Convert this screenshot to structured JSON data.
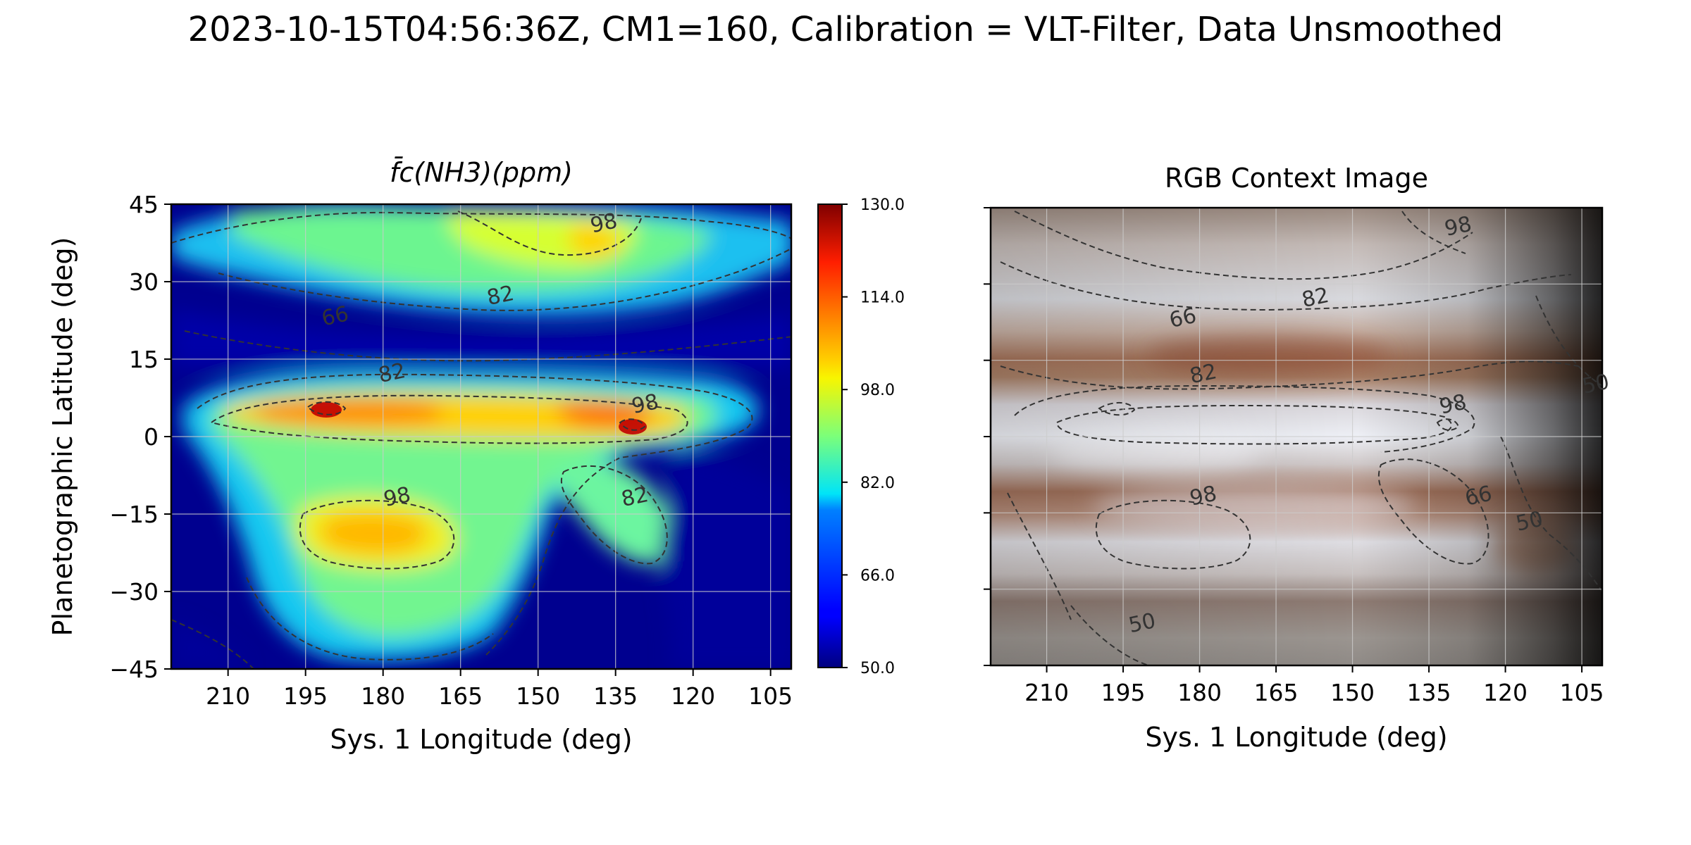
{
  "figure": {
    "title": "2023-10-15T04:56:36Z, CM1=160, Calibration = VLT-Filter, Data Unsmoothed"
  },
  "colors": {
    "colormap": "jet",
    "contour": "#333333",
    "grid": "#cccccc",
    "background": "#ffffff"
  },
  "chart_data": [
    {
      "type": "heatmap",
      "title": "f̄c(NH3)(ppm)",
      "xlabel": "Sys. 1 Longitude (deg)",
      "ylabel": "Planetographic Latitude (deg)",
      "xlim": [
        221,
        101
      ],
      "ylim": [
        -45,
        45
      ],
      "x_ticks": [
        210,
        195,
        180,
        165,
        150,
        135,
        120,
        105
      ],
      "y_ticks": [
        45,
        30,
        15,
        0,
        -15,
        -30,
        -45
      ],
      "grid": true,
      "colorbar": {
        "min": 50.0,
        "max": 130.0,
        "ticks": [
          "50.0",
          "66.0",
          "82.0",
          "98.0",
          "114.0",
          "130.0"
        ]
      },
      "contour_levels": [
        50,
        66,
        82,
        98
      ],
      "contour_labels": [
        {
          "text": "98",
          "lon": 137,
          "lat": 40
        },
        {
          "text": "82",
          "lon": 157,
          "lat": 26
        },
        {
          "text": "66",
          "lon": 189,
          "lat": 22
        },
        {
          "text": "82",
          "lon": 178,
          "lat": 11
        },
        {
          "text": "98",
          "lon": 129,
          "lat": 5
        },
        {
          "text": "98",
          "lon": 177,
          "lat": -13
        },
        {
          "text": "82",
          "lon": 131,
          "lat": -13
        }
      ],
      "features": [
        {
          "name": "equatorial band",
          "lat": 4,
          "lon_from": 197,
          "lon_to": 118,
          "ppm": 105
        },
        {
          "name": "equatorial peak",
          "lat": 5,
          "lon": 187,
          "ppm": 124
        },
        {
          "name": "equatorial peak",
          "lat": 2,
          "lon": 128,
          "ppm": 126
        },
        {
          "name": "southern maximum",
          "lat": -20,
          "lon": 179,
          "ppm": 108
        },
        {
          "name": "northern maximum",
          "lat": 37,
          "lon": 138,
          "ppm": 96
        },
        {
          "name": "low region",
          "lat": 20,
          "lon": 165,
          "ppm": 50
        },
        {
          "name": "low region",
          "lat": -12,
          "lon": 108,
          "ppm": 50
        }
      ]
    },
    {
      "type": "heatmap",
      "title": "RGB Context Image",
      "xlabel": "Sys. 1 Longitude (deg)",
      "ylabel": "",
      "xlim": [
        221,
        101
      ],
      "ylim": [
        -45,
        45
      ],
      "x_ticks": [
        210,
        195,
        180,
        165,
        150,
        135,
        120,
        105
      ],
      "y_ticks": [
        45,
        30,
        15,
        0,
        -15,
        -30,
        -45
      ],
      "y_tick_labels_shown": false,
      "grid": true,
      "contour_levels": [
        50,
        66,
        82,
        98
      ],
      "contour_labels": [
        {
          "text": "98",
          "lon": 129,
          "lat": 40
        },
        {
          "text": "82",
          "lon": 157,
          "lat": 26
        },
        {
          "text": "66",
          "lon": 183,
          "lat": 22
        },
        {
          "text": "82",
          "lon": 179,
          "lat": 11
        },
        {
          "text": "50",
          "lon": 102,
          "lat": 9
        },
        {
          "text": "98",
          "lon": 130,
          "lat": 5
        },
        {
          "text": "98",
          "lon": 179,
          "lat": -13
        },
        {
          "text": "66",
          "lon": 125,
          "lat": -13
        },
        {
          "text": "50",
          "lon": 115,
          "lat": -18
        },
        {
          "text": "50",
          "lon": 191,
          "lat": -38
        }
      ]
    }
  ]
}
